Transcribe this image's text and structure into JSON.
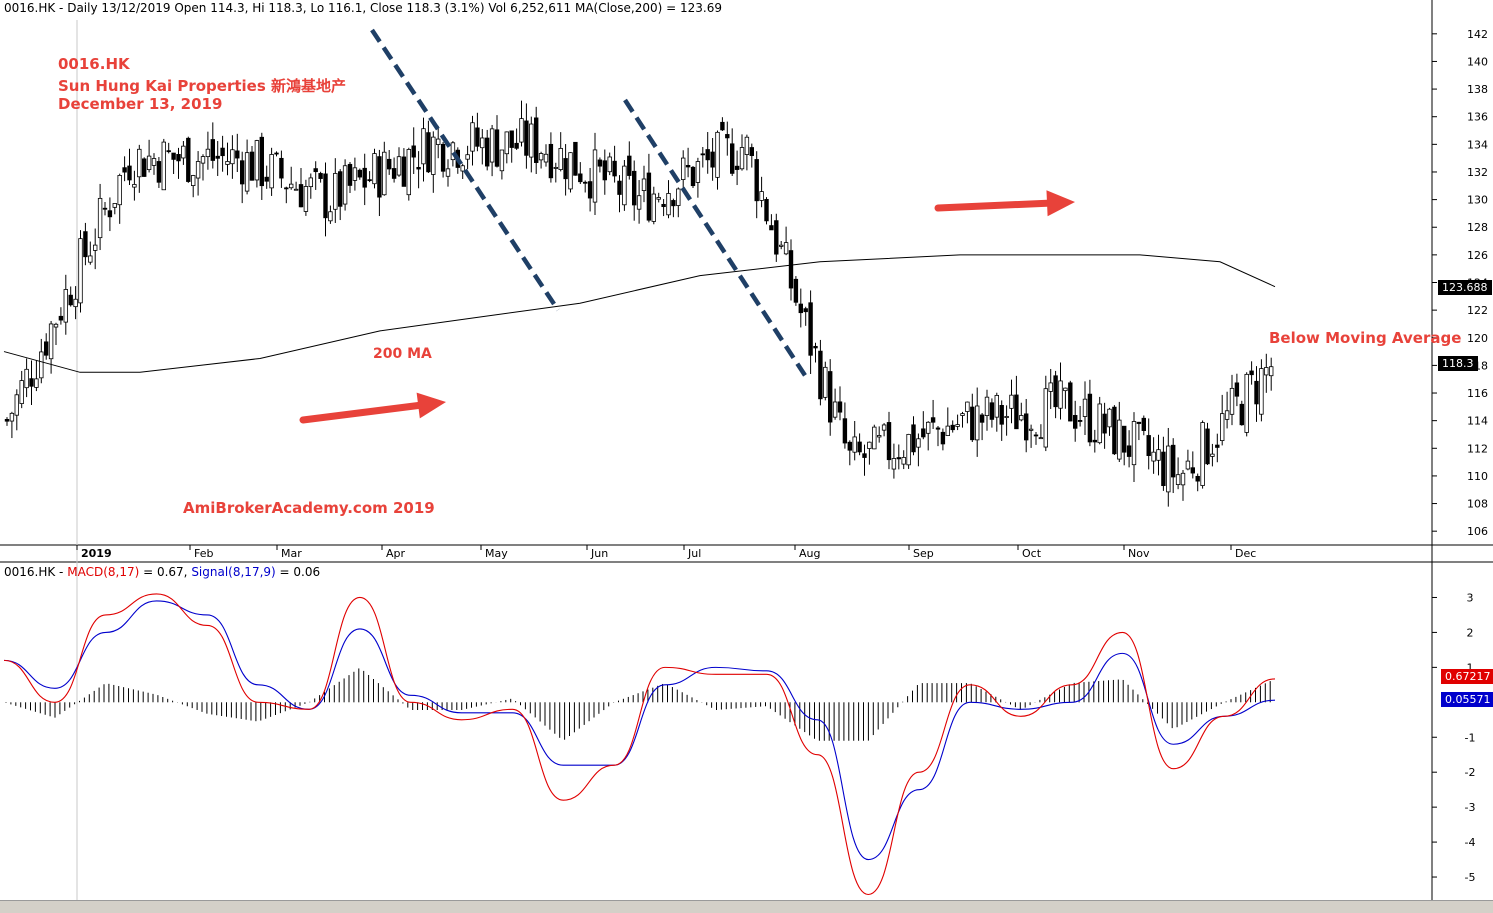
{
  "header": {
    "price_line": "0016.HK - Daily 13/12/2019 Open 114.3, Hi 118.3, Lo 116.1, Close 118.3 (3.1%) Vol 6,252,611 MA(Close,200) = 123.69",
    "macd_symbol": "0016.HK - ",
    "macd_label": "MACD(8,17)",
    "macd_value": " = 0.67, ",
    "signal_label": "Signal(8,17,9)",
    "signal_value": " = 0.06"
  },
  "annotations": {
    "ticker": "0016.HK",
    "company": "Sun Hung Kai Properties  新鴻基地产",
    "date": "December 13, 2019",
    "ma_label": "200 MA",
    "below_ma": "Below Moving Average",
    "watermark": "AmiBrokerAcademy.com   2019"
  },
  "price_tags": {
    "ma_value": "123.688",
    "close_value": "118.3",
    "macd_value": "0.67217",
    "signal_value": "0.05571"
  },
  "colors": {
    "annotation": "#e8423a",
    "trendline": "#1f3f66",
    "macd": "#e00000",
    "signal": "#0000cc"
  },
  "chart_data": [
    {
      "type": "candlestick",
      "title": "0016.HK Daily",
      "x_ticks": [
        "2019",
        "Feb",
        "Mar",
        "Apr",
        "May",
        "Jun",
        "Jul",
        "Aug",
        "Sep",
        "Oct",
        "Nov",
        "Dec"
      ],
      "y_ticks": [
        106,
        108,
        110,
        112,
        114,
        116,
        118,
        120,
        122,
        124,
        126,
        128,
        130,
        132,
        134,
        136,
        138,
        140,
        142
      ],
      "ylim": [
        105,
        143
      ],
      "approx_close_by_month": [
        {
          "month": "Dec 2018",
          "close": 114
        },
        {
          "month": "Jan",
          "close": 133
        },
        {
          "month": "Feb",
          "close": 133
        },
        {
          "month": "Mar",
          "close": 130
        },
        {
          "month": "Apr",
          "close": 134
        },
        {
          "month": "May",
          "close": 134
        },
        {
          "month": "Jun",
          "close": 130
        },
        {
          "month": "Jul",
          "close": 134
        },
        {
          "month": "Aug",
          "close": 111
        },
        {
          "month": "Sep",
          "close": 114
        },
        {
          "month": "Oct",
          "close": 115
        },
        {
          "month": "Nov",
          "close": 110
        },
        {
          "month": "Dec",
          "close": 118.3
        }
      ],
      "series": [
        {
          "name": "MA(Close,200)",
          "approx_values": [
            119,
            117.5,
            117.5,
            118,
            118.5,
            120.5,
            121.5,
            122.5,
            124.5,
            125.5,
            126,
            126,
            125.5,
            123.7
          ]
        }
      ]
    },
    {
      "type": "macd",
      "y_ticks": [
        -5,
        -4,
        -3,
        -2,
        -1,
        1,
        2,
        3
      ],
      "ylim": [
        -5.6,
        3.5
      ],
      "series": [
        {
          "name": "MACD(8,17)",
          "approx_values": [
            1.2,
            0.0,
            2.5,
            3.1,
            2.2,
            0.0,
            -0.2,
            3.0,
            0.0,
            -0.5,
            -0.2,
            -2.8,
            -1.8,
            1.0,
            0.8,
            0.8,
            -1.5,
            -5.5,
            -2.0,
            0.5,
            -0.4,
            0.5,
            2.0,
            -1.9,
            -0.4,
            0.67
          ]
        },
        {
          "name": "Signal(8,17,9)",
          "approx_values": [
            1.2,
            0.4,
            2.0,
            2.9,
            2.5,
            0.5,
            -0.2,
            2.1,
            0.2,
            -0.3,
            -0.3,
            -1.8,
            -1.8,
            0.5,
            1.0,
            0.9,
            -0.5,
            -4.5,
            -2.5,
            0.0,
            -0.2,
            0.0,
            1.4,
            -1.2,
            -0.4,
            0.06
          ]
        }
      ]
    }
  ]
}
